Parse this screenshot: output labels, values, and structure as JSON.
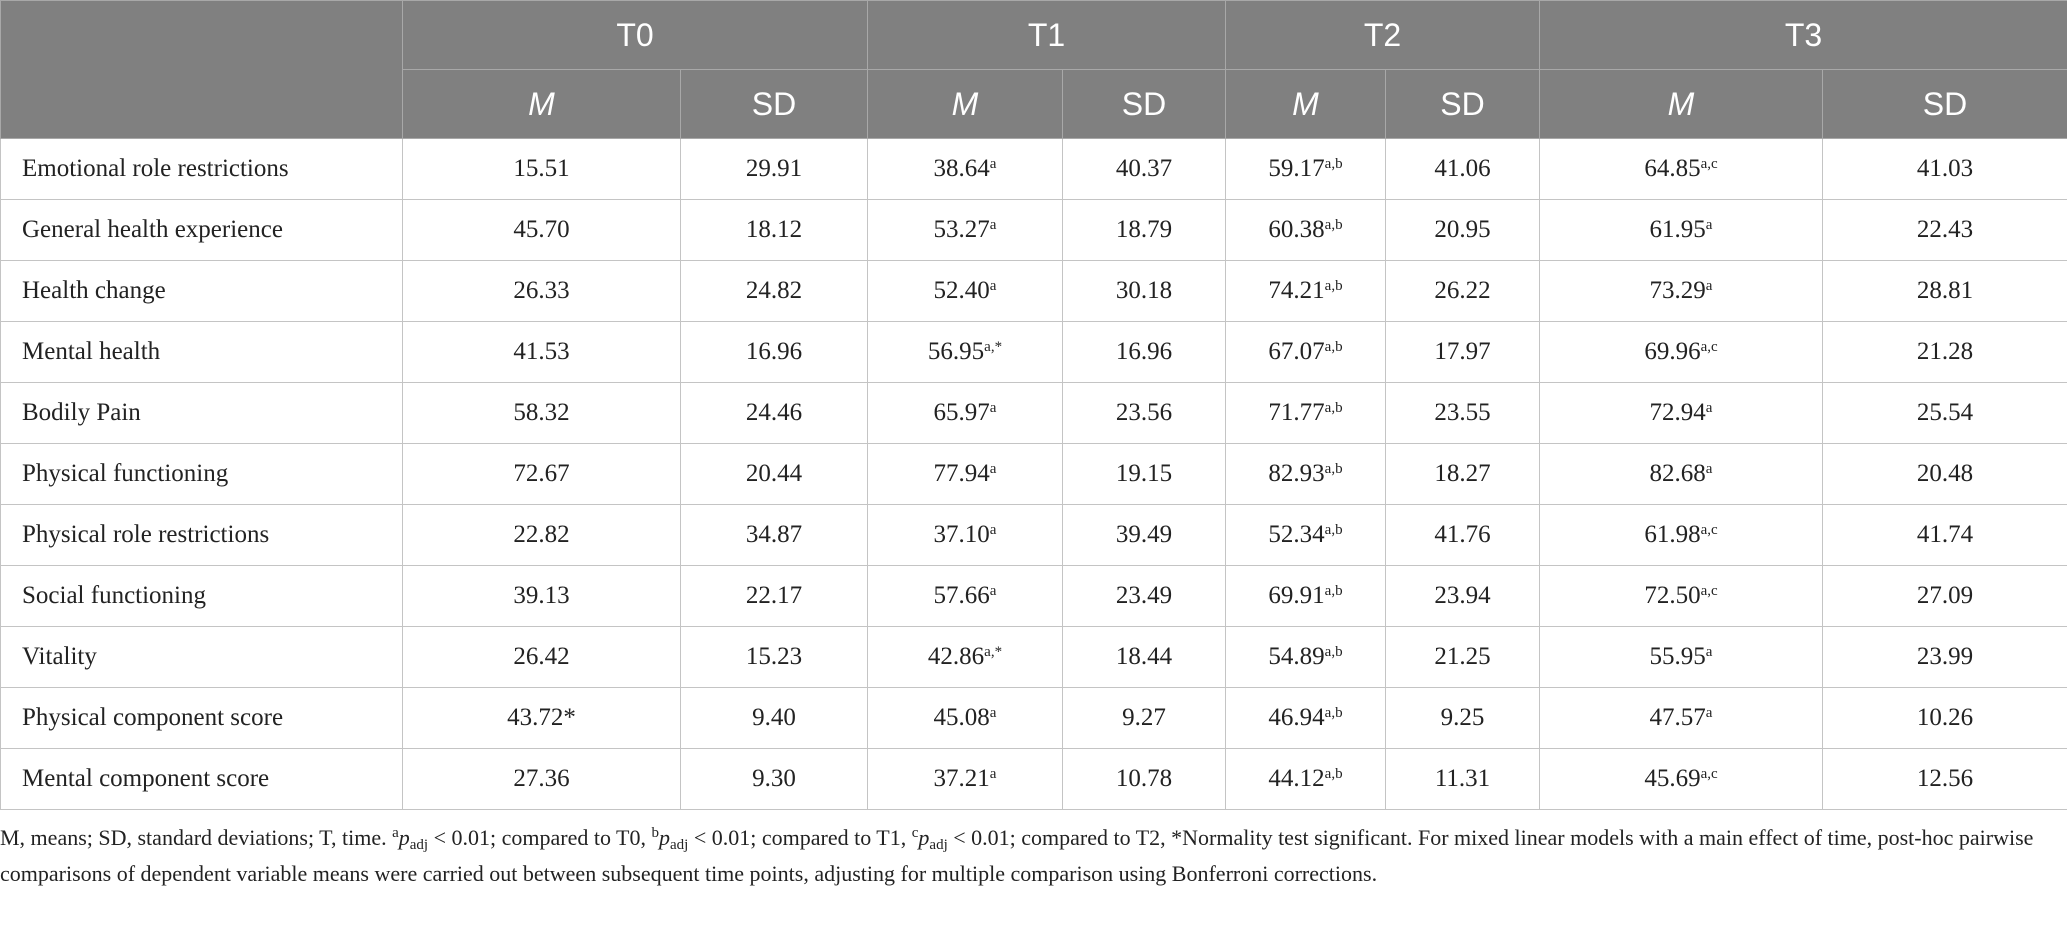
{
  "header": {
    "groups": [
      "T0",
      "T1",
      "T2",
      "T3"
    ],
    "subheaders": [
      "M",
      "SD",
      "M",
      "SD",
      "M",
      "SD",
      "M",
      "SD"
    ]
  },
  "rows": [
    {
      "label": "Emotional role restrictions",
      "values": [
        "15.51",
        "29.91",
        {
          "text": "38.64",
          "sup": "a"
        },
        "40.37",
        {
          "text": "59.17",
          "sup": "a,b"
        },
        "41.06",
        {
          "text": "64.85",
          "sup": "a,c"
        },
        "41.03"
      ]
    },
    {
      "label": "General health experience",
      "values": [
        "45.70",
        "18.12",
        {
          "text": "53.27",
          "sup": "a"
        },
        "18.79",
        {
          "text": "60.38",
          "sup": "a,b"
        },
        "20.95",
        {
          "text": "61.95",
          "sup": "a"
        },
        "22.43"
      ]
    },
    {
      "label": "Health change",
      "values": [
        "26.33",
        "24.82",
        {
          "text": "52.40",
          "sup": "a"
        },
        "30.18",
        {
          "text": "74.21",
          "sup": "a,b"
        },
        "26.22",
        {
          "text": "73.29",
          "sup": "a"
        },
        "28.81"
      ]
    },
    {
      "label": "Mental health",
      "values": [
        "41.53",
        "16.96",
        {
          "text": "56.95",
          "sup": "a,*"
        },
        "16.96",
        {
          "text": "67.07",
          "sup": "a,b"
        },
        "17.97",
        {
          "text": "69.96",
          "sup": "a,c"
        },
        "21.28"
      ]
    },
    {
      "label": "Bodily Pain",
      "values": [
        "58.32",
        "24.46",
        {
          "text": "65.97",
          "sup": "a"
        },
        "23.56",
        {
          "text": "71.77",
          "sup": "a,b"
        },
        "23.55",
        {
          "text": "72.94",
          "sup": "a"
        },
        "25.54"
      ]
    },
    {
      "label": "Physical functioning",
      "values": [
        "72.67",
        "20.44",
        {
          "text": "77.94",
          "sup": "a"
        },
        "19.15",
        {
          "text": "82.93",
          "sup": "a,b"
        },
        "18.27",
        {
          "text": "82.68",
          "sup": "a"
        },
        "20.48"
      ]
    },
    {
      "label": "Physical role restrictions",
      "values": [
        "22.82",
        "34.87",
        {
          "text": "37.10",
          "sup": "a"
        },
        "39.49",
        {
          "text": "52.34",
          "sup": "a,b"
        },
        "41.76",
        {
          "text": "61.98",
          "sup": "a,c"
        },
        "41.74"
      ]
    },
    {
      "label": "Social functioning",
      "values": [
        "39.13",
        "22.17",
        {
          "text": "57.66",
          "sup": "a"
        },
        "23.49",
        {
          "text": "69.91",
          "sup": "a,b"
        },
        "23.94",
        {
          "text": "72.50",
          "sup": "a,c"
        },
        "27.09"
      ]
    },
    {
      "label": "Vitality",
      "values": [
        "26.42",
        "15.23",
        {
          "text": "42.86",
          "sup": "a,*"
        },
        "18.44",
        {
          "text": "54.89",
          "sup": "a,b"
        },
        "21.25",
        {
          "text": "55.95",
          "sup": "a"
        },
        "23.99"
      ]
    },
    {
      "label": "Physical component score",
      "values": [
        "43.72*",
        "9.40",
        {
          "text": "45.08",
          "sup": "a"
        },
        "9.27",
        {
          "text": "46.94",
          "sup": "a,b"
        },
        "9.25",
        {
          "text": "47.57",
          "sup": "a"
        },
        "10.26"
      ]
    },
    {
      "label": "Mental component score",
      "values": [
        "27.36",
        "9.30",
        {
          "text": "37.21",
          "sup": "a"
        },
        "10.78",
        {
          "text": "44.12",
          "sup": "a,b"
        },
        "11.31",
        {
          "text": "45.69",
          "sup": "a,c"
        },
        "12.56"
      ]
    }
  ],
  "footnote": [
    "M, means; SD, standard deviations; T, time. ",
    {
      "sup": "a"
    },
    {
      "i": "p"
    },
    {
      "sub": "adj"
    },
    " < 0.01; compared to T0, ",
    {
      "sup": "b"
    },
    {
      "i": "p"
    },
    {
      "sub": "adj"
    },
    " < 0.01; compared to T1, ",
    {
      "sup": "c"
    },
    {
      "i": "p"
    },
    {
      "sub": "adj"
    },
    " < 0.01; compared to T2, *Normality test significant. For mixed linear models with a main effect of time, post-hoc pairwise comparisons of dependent variable means were carried out between subsequent time points, adjusting for multiple comparison using Bonferroni corrections."
  ]
}
